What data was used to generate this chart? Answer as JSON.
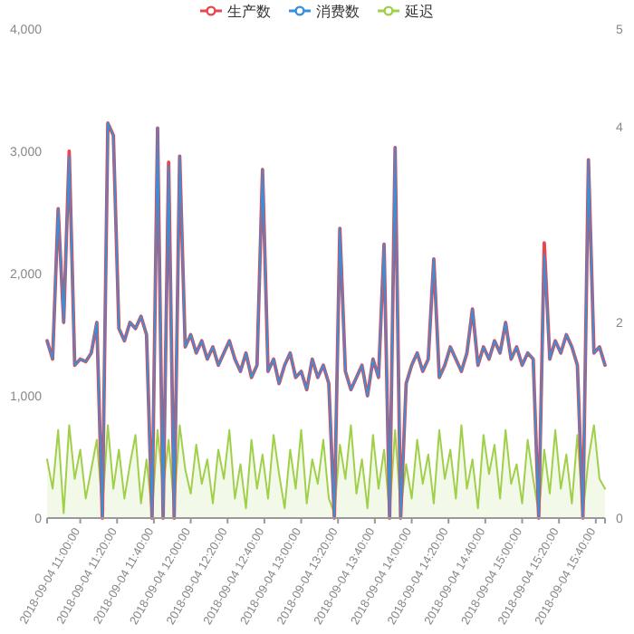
{
  "chart_data": {
    "type": "line",
    "legend": "top",
    "x": [
      "2018-09-04T10:42",
      "2018-09-04T10:45",
      "2018-09-04T10:48",
      "2018-09-04T10:51",
      "2018-09-04T10:54",
      "2018-09-04T10:57",
      "2018-09-04T11:00",
      "2018-09-04T11:03",
      "2018-09-04T11:06",
      "2018-09-04T11:09",
      "2018-09-04T11:12",
      "2018-09-04T11:15",
      "2018-09-04T11:18",
      "2018-09-04T11:21",
      "2018-09-04T11:24",
      "2018-09-04T11:27",
      "2018-09-04T11:30",
      "2018-09-04T11:33",
      "2018-09-04T11:36",
      "2018-09-04T11:39",
      "2018-09-04T11:42",
      "2018-09-04T11:45",
      "2018-09-04T11:48",
      "2018-09-04T11:51",
      "2018-09-04T11:54",
      "2018-09-04T11:57",
      "2018-09-04T12:00",
      "2018-09-04T12:03",
      "2018-09-04T12:06",
      "2018-09-04T12:09",
      "2018-09-04T12:12",
      "2018-09-04T12:15",
      "2018-09-04T12:18",
      "2018-09-04T12:21",
      "2018-09-04T12:24",
      "2018-09-04T12:27",
      "2018-09-04T12:30",
      "2018-09-04T12:33",
      "2018-09-04T12:36",
      "2018-09-04T12:39",
      "2018-09-04T12:42",
      "2018-09-04T12:45",
      "2018-09-04T12:48",
      "2018-09-04T12:51",
      "2018-09-04T12:54",
      "2018-09-04T12:57",
      "2018-09-04T13:00",
      "2018-09-04T13:03",
      "2018-09-04T13:06",
      "2018-09-04T13:09",
      "2018-09-04T13:12",
      "2018-09-04T13:15",
      "2018-09-04T13:18",
      "2018-09-04T13:21",
      "2018-09-04T13:24",
      "2018-09-04T13:27",
      "2018-09-04T13:30",
      "2018-09-04T13:33",
      "2018-09-04T13:36",
      "2018-09-04T13:39",
      "2018-09-04T13:42",
      "2018-09-04T13:45",
      "2018-09-04T13:48",
      "2018-09-04T13:51",
      "2018-09-04T13:54",
      "2018-09-04T13:57",
      "2018-09-04T14:00",
      "2018-09-04T14:03",
      "2018-09-04T14:06",
      "2018-09-04T14:09",
      "2018-09-04T14:12",
      "2018-09-04T14:15",
      "2018-09-04T14:18",
      "2018-09-04T14:21",
      "2018-09-04T14:24",
      "2018-09-04T14:27",
      "2018-09-04T14:30",
      "2018-09-04T14:33",
      "2018-09-04T14:36",
      "2018-09-04T14:39",
      "2018-09-04T14:42",
      "2018-09-04T14:45",
      "2018-09-04T14:48",
      "2018-09-04T14:51",
      "2018-09-04T14:54",
      "2018-09-04T14:57",
      "2018-09-04T15:00",
      "2018-09-04T15:03",
      "2018-09-04T15:06",
      "2018-09-04T15:09",
      "2018-09-04T15:12",
      "2018-09-04T15:15",
      "2018-09-04T15:18",
      "2018-09-04T15:21",
      "2018-09-04T15:24",
      "2018-09-04T15:27",
      "2018-09-04T15:30",
      "2018-09-04T15:33",
      "2018-09-04T15:36",
      "2018-09-04T15:39",
      "2018-09-04T15:42",
      "2018-09-04T15:45"
    ],
    "xlim": [
      "2018-09-04T10:42",
      "2018-09-04T15:45"
    ],
    "xticks": [
      {
        "value": "2018-09-04T11:00",
        "label": "2018-09-04 11:00:00"
      },
      {
        "value": "2018-09-04T11:20",
        "label": "2018-09-04 11:20:00"
      },
      {
        "value": "2018-09-04T11:40",
        "label": "2018-09-04 11:40:00"
      },
      {
        "value": "2018-09-04T12:00",
        "label": "2018-09-04 12:00:00"
      },
      {
        "value": "2018-09-04T12:20",
        "label": "2018-09-04 12:20:00"
      },
      {
        "value": "2018-09-04T12:40",
        "label": "2018-09-04 12:40:00"
      },
      {
        "value": "2018-09-04T13:00",
        "label": "2018-09-04 13:00:00"
      },
      {
        "value": "2018-09-04T13:20",
        "label": "2018-09-04 13:20:00"
      },
      {
        "value": "2018-09-04T13:40",
        "label": "2018-09-04 13:40:00"
      },
      {
        "value": "2018-09-04T14:00",
        "label": "2018-09-04 14:00:00"
      },
      {
        "value": "2018-09-04T14:20",
        "label": "2018-09-04 14:20:00"
      },
      {
        "value": "2018-09-04T14:40",
        "label": "2018-09-04 14:40:00"
      },
      {
        "value": "2018-09-04T15:00",
        "label": "2018-09-04 15:00:00"
      },
      {
        "value": "2018-09-04T15:20",
        "label": "2018-09-04 15:20:00"
      },
      {
        "value": "2018-09-04T15:40",
        "label": "2018-09-04 15:40:00"
      }
    ],
    "ylim": [
      0,
      4000
    ],
    "yticks": [
      {
        "value": 0,
        "label": "0"
      },
      {
        "value": 1000,
        "label": "1,000"
      },
      {
        "value": 2000,
        "label": "2,000"
      },
      {
        "value": 3000,
        "label": "3,000"
      },
      {
        "value": 4000,
        "label": "4,000"
      }
    ],
    "y2lim": [
      0,
      5
    ],
    "y2ticks": [
      0,
      2,
      4,
      5
    ],
    "series": [
      {
        "name": "生产数",
        "color": "#e8474f",
        "values": [
          1450,
          1300,
          2530,
          1600,
          3000,
          1250,
          1300,
          1280,
          1350,
          1600,
          0,
          3230,
          3130,
          1550,
          1450,
          1600,
          1550,
          1650,
          1500,
          0,
          3190,
          0,
          2910,
          0,
          2960,
          1400,
          1500,
          1350,
          1450,
          1300,
          1400,
          1250,
          1350,
          1450,
          1300,
          1200,
          1350,
          1150,
          1250,
          2850,
          1200,
          1300,
          1100,
          1250,
          1350,
          1150,
          1200,
          1050,
          1300,
          1150,
          1250,
          1100,
          0,
          2370,
          1200,
          1050,
          1150,
          1250,
          1000,
          1300,
          1150,
          2240,
          0,
          3030,
          0,
          1100,
          1250,
          1350,
          1200,
          1300,
          2120,
          1150,
          1250,
          1400,
          1300,
          1200,
          1350,
          1710,
          1250,
          1400,
          1300,
          1450,
          1350,
          1600,
          1300,
          1400,
          1250,
          1350,
          1300,
          0,
          2250,
          1300,
          1450,
          1350,
          1500,
          1400,
          1250,
          0,
          2930,
          1350,
          1400,
          1250
        ]
      },
      {
        "name": "消费数",
        "color": "#3a8fd6",
        "values": [
          1450,
          1300,
          2530,
          1600,
          2960,
          1250,
          1300,
          1280,
          1350,
          1600,
          0,
          3230,
          3130,
          1550,
          1450,
          1600,
          1550,
          1650,
          1500,
          0,
          3190,
          0,
          2880,
          0,
          2960,
          1400,
          1500,
          1350,
          1450,
          1300,
          1400,
          1250,
          1350,
          1450,
          1300,
          1200,
          1350,
          1150,
          1250,
          2850,
          1200,
          1300,
          1100,
          1250,
          1350,
          1150,
          1200,
          1050,
          1300,
          1150,
          1250,
          1100,
          0,
          2370,
          1200,
          1050,
          1150,
          1250,
          1000,
          1300,
          1150,
          2240,
          0,
          3030,
          0,
          1100,
          1250,
          1350,
          1200,
          1300,
          2120,
          1150,
          1250,
          1400,
          1300,
          1200,
          1350,
          1710,
          1250,
          1400,
          1300,
          1450,
          1350,
          1600,
          1300,
          1400,
          1250,
          1350,
          1300,
          0,
          2150,
          1300,
          1450,
          1350,
          1500,
          1400,
          1250,
          0,
          2930,
          1350,
          1400,
          1250
        ]
      },
      {
        "name": "延迟",
        "color": "#a0d04a",
        "type": "area",
        "axis": "y2",
        "values": [
          0.6,
          0.3,
          0.9,
          0.05,
          0.95,
          0.4,
          0.7,
          0.2,
          0.5,
          0.8,
          0.1,
          0.95,
          0.3,
          0.7,
          0.2,
          0.55,
          0.85,
          0.15,
          0.6,
          0.05,
          0.9,
          0.3,
          0.8,
          0.1,
          0.95,
          0.5,
          0.25,
          0.75,
          0.35,
          0.6,
          0.15,
          0.7,
          0.4,
          0.9,
          0.2,
          0.55,
          0.1,
          0.8,
          0.3,
          0.65,
          0.2,
          0.85,
          0.45,
          0.1,
          0.7,
          0.3,
          0.9,
          0.15,
          0.6,
          0.35,
          0.8,
          0.2,
          0.05,
          0.75,
          0.4,
          0.95,
          0.25,
          0.6,
          0.1,
          0.85,
          0.3,
          0.7,
          0.05,
          0.9,
          0.1,
          0.55,
          0.2,
          0.8,
          0.35,
          0.65,
          0.15,
          0.9,
          0.4,
          0.7,
          0.2,
          0.95,
          0.3,
          0.6,
          0.1,
          0.85,
          0.45,
          0.75,
          0.2,
          0.9,
          0.35,
          0.55,
          0.15,
          0.8,
          0.4,
          0.05,
          0.7,
          0.25,
          0.9,
          0.3,
          0.65,
          0.15,
          0.85,
          0.05,
          0.6,
          0.95,
          0.4,
          0.3
        ]
      }
    ]
  }
}
